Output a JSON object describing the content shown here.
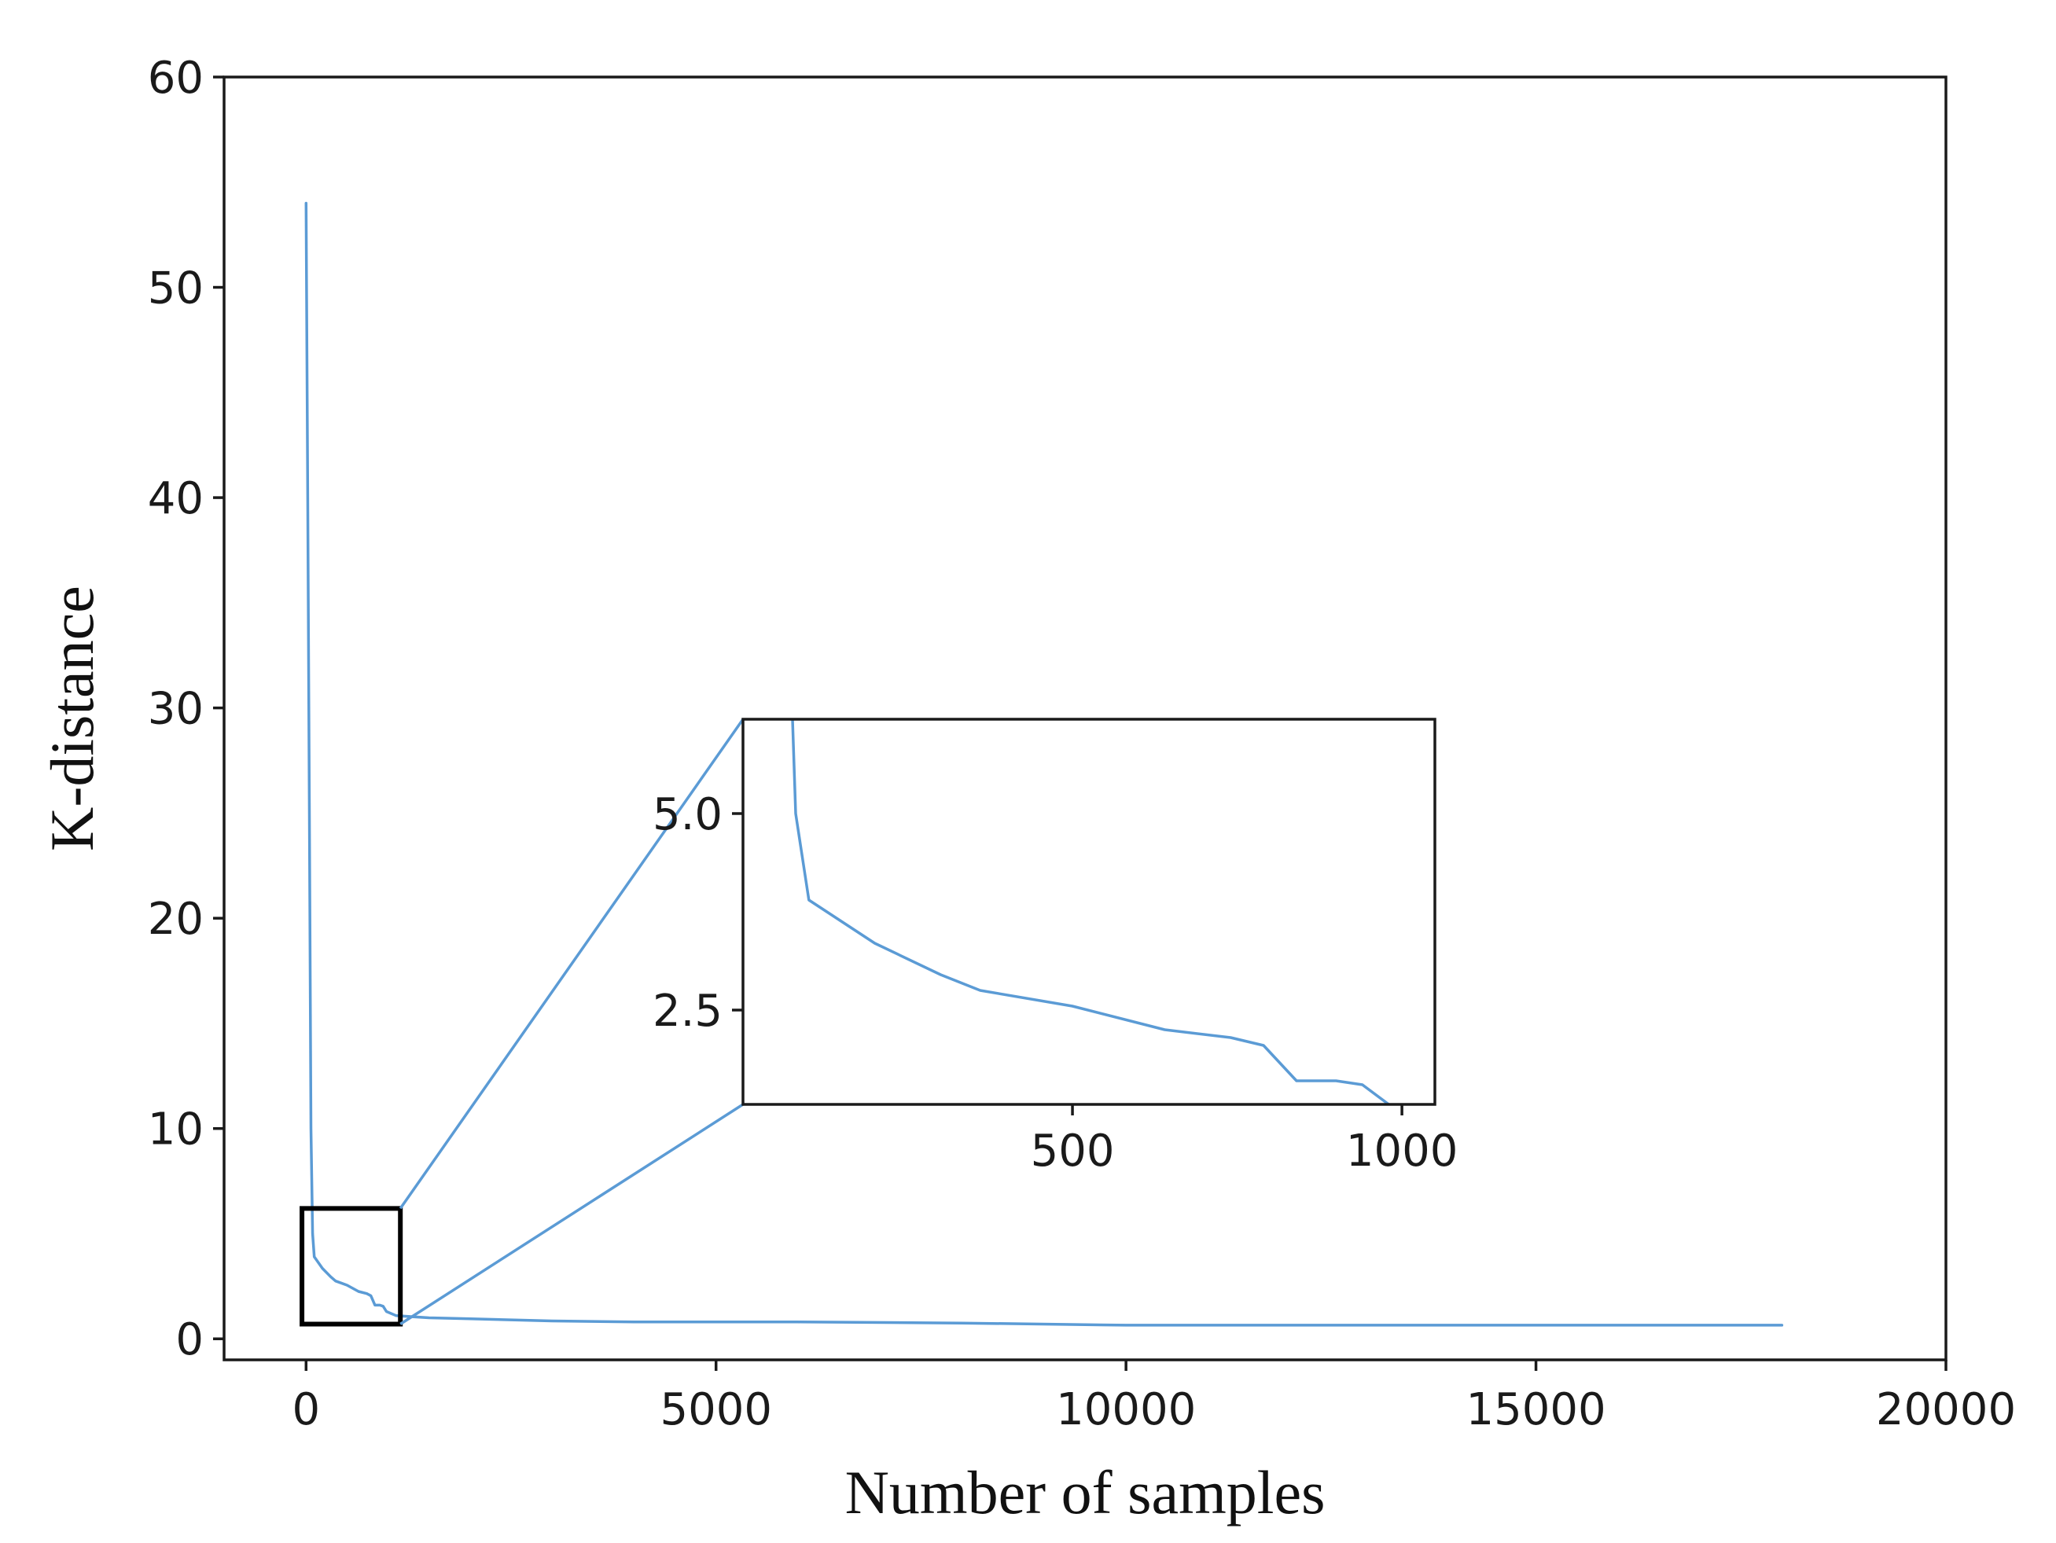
{
  "chart_data": {
    "type": "line",
    "xlabel": "Number of samples",
    "ylabel": "K-distance",
    "xlim": [
      -1000,
      20000
    ],
    "ylim": [
      -1,
      60
    ],
    "xticks": [
      0,
      5000,
      10000,
      15000,
      20000
    ],
    "yticks": [
      0,
      10,
      20,
      30,
      40,
      50,
      60
    ],
    "grid": false,
    "line_color": "#5b9bd5",
    "series": [
      {
        "x": [
          0,
          20,
          40,
          60,
          80,
          100,
          200,
          300,
          360,
          500,
          640,
          740,
          790,
          840,
          900,
          940,
          980,
          1100,
          1500,
          2000,
          3000,
          4000,
          6000,
          8000,
          10000,
          12000,
          14000,
          16000,
          18000
        ],
        "y": [
          54,
          40,
          25,
          10,
          5.0,
          3.9,
          3.35,
          2.95,
          2.75,
          2.55,
          2.25,
          2.15,
          2.05,
          1.6,
          1.6,
          1.55,
          1.3,
          1.1,
          1.0,
          0.95,
          0.85,
          0.8,
          0.8,
          0.75,
          0.65,
          0.65,
          0.65,
          0.65,
          0.65
        ]
      }
    ],
    "inset": {
      "xlim": [
        0,
        1050
      ],
      "ylim": [
        1.3,
        6.2
      ],
      "xticks": [
        500,
        1000
      ],
      "yticks": [
        2.5,
        5.0
      ],
      "ytick_labels": [
        "2.5",
        "5.0"
      ],
      "source_region": {
        "x": [
          -50,
          1150
        ],
        "y": [
          0.7,
          6.2
        ]
      }
    }
  }
}
